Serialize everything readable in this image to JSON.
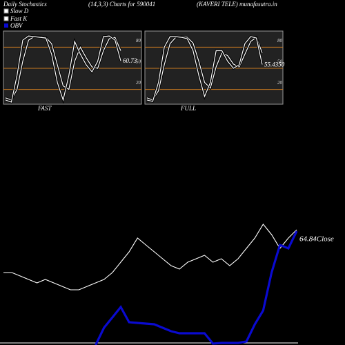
{
  "header": {
    "title": "Daily Stochastics",
    "subtitle": "(14,3,3) Charts for 590041",
    "source": "(KAVERI TELE) munafasutra.in"
  },
  "chart_data": [
    {
      "type": "line",
      "label": "FAST",
      "ylim": [
        0,
        100
      ],
      "yticks": [
        20,
        50,
        80
      ],
      "grid": true,
      "grid_color": "#c87a20",
      "series": [
        {
          "name": "Slow D",
          "color": "#ffffff",
          "values": [
            8,
            5,
            20,
            60,
            90,
            95,
            95,
            94,
            85,
            55,
            25,
            20,
            60,
            80,
            65,
            52,
            50,
            75,
            92,
            94,
            75
          ]
        },
        {
          "name": "Fast K",
          "color": "#ffffff",
          "values": [
            5,
            2,
            40,
            90,
            96,
            95,
            94,
            93,
            70,
            30,
            5,
            40,
            88,
            70,
            55,
            45,
            60,
            95,
            96,
            90,
            60.73
          ]
        }
      ]
    },
    {
      "type": "line",
      "label": "FULL",
      "ylim": [
        0,
        100
      ],
      "yticks": [
        20,
        50,
        80
      ],
      "grid": true,
      "grid_color": "#c87a20",
      "series": [
        {
          "name": "Slow D",
          "color": "#ffffff",
          "values": [
            8,
            5,
            18,
            55,
            85,
            94,
            95,
            94,
            86,
            60,
            30,
            22,
            52,
            72,
            68,
            56,
            52,
            70,
            88,
            94,
            72
          ]
        },
        {
          "name": "Fast K",
          "color": "#ffffff",
          "values": [
            5,
            3,
            30,
            80,
            95,
            95,
            94,
            92,
            75,
            40,
            10,
            30,
            75,
            75,
            60,
            50,
            55,
            85,
            95,
            93,
            55.435
          ],
          "value_labels": [
            null,
            null,
            null,
            null,
            null,
            null,
            null,
            null,
            null,
            null,
            null,
            null,
            null,
            null,
            null,
            null,
            null,
            null,
            null,
            null,
            "55.4350"
          ]
        }
      ]
    },
    {
      "type": "line",
      "series": [
        {
          "name": "Close",
          "color": "#ffffff",
          "values": [
            61.74,
            61.74,
            61.49,
            61.24,
            60.99,
            61.24,
            60.99,
            60.74,
            60.49,
            60.49,
            60.74,
            60.99,
            61.24,
            61.74,
            62.49,
            63.24,
            64.24,
            63.74,
            63.24,
            62.74,
            62.24,
            61.99,
            62.49,
            62.74,
            62.99,
            62.49,
            62.74,
            62.24,
            62.74,
            63.49,
            64.24,
            65.24,
            64.49,
            63.49,
            64.24,
            64.84
          ],
          "value_labels": [
            null,
            null,
            null,
            null,
            null,
            null,
            null,
            null,
            null,
            null,
            null,
            null,
            null,
            null,
            null,
            null,
            null,
            null,
            null,
            null,
            null,
            null,
            null,
            null,
            null,
            null,
            null,
            null,
            null,
            null,
            null,
            null,
            null,
            null,
            null,
            "64.84Close"
          ]
        },
        {
          "name": "OBV",
          "color": "#0a0ad0",
          "values": [
            null,
            null,
            null,
            null,
            null,
            null,
            null,
            null,
            null,
            null,
            null,
            0,
            25,
            40,
            55,
            33,
            32,
            31,
            30,
            25,
            20,
            17,
            17,
            17,
            17,
            2,
            3,
            3,
            3,
            5,
            30,
            50,
            105,
            145,
            140,
            165
          ]
        }
      ]
    }
  ]
}
